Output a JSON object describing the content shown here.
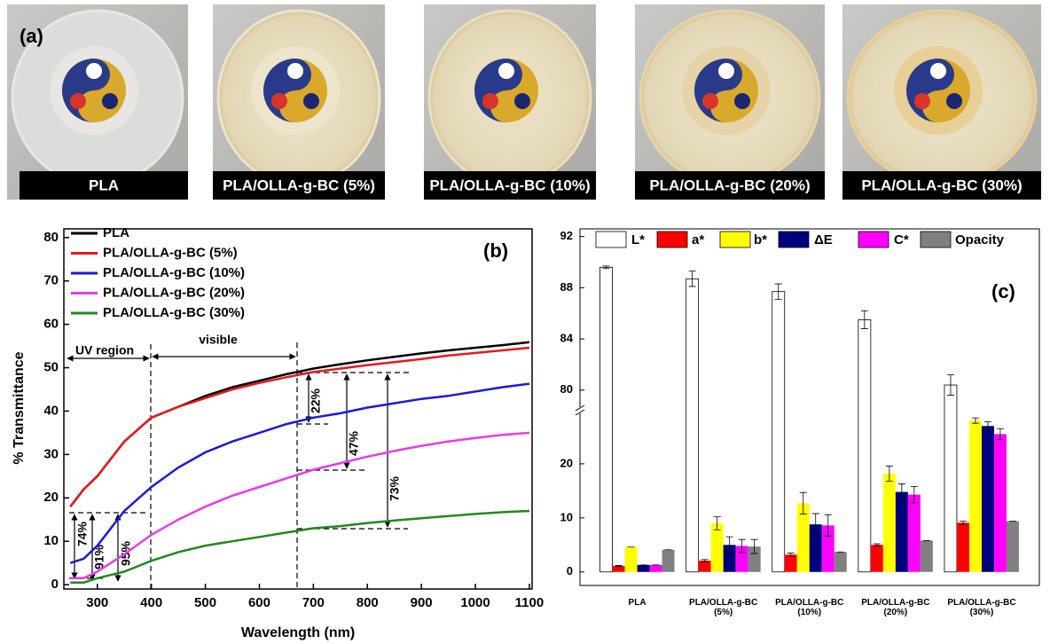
{
  "panel_a": {
    "label": "(a)",
    "captions": [
      "PLA",
      "PLA/OLLA-g-BC (5%)",
      "PLA/OLLA-g-BC (10%)",
      "PLA/OLLA-g-BC (20%)",
      "PLA/OLLA-g-BC (30%)"
    ]
  },
  "chart_data": [
    {
      "type": "line",
      "panel_label": "(b)",
      "x_label": "Wavelength (nm)",
      "y_label": "% Transmittance",
      "x": [
        250,
        275,
        300,
        350,
        400,
        450,
        500,
        550,
        600,
        650,
        700,
        750,
        800,
        850,
        900,
        950,
        1000,
        1050,
        1100
      ],
      "series": [
        {
          "name": "PLA",
          "color": "#000000",
          "values": [
            18,
            22,
            25,
            33,
            38.5,
            41,
            43.5,
            45.5,
            47,
            48.5,
            49.8,
            50.8,
            51.7,
            52.5,
            53.3,
            54,
            54.6,
            55.2,
            55.9
          ]
        },
        {
          "name": "PLA/OLLA-g-BC (5%)",
          "color": "#e8191c",
          "values": [
            18,
            22,
            25,
            33,
            38.5,
            41,
            43,
            45,
            46.5,
            47.8,
            49,
            49.8,
            50.6,
            51.3,
            52,
            52.8,
            53.4,
            54,
            54.6
          ]
        },
        {
          "name": "PLA/OLLA-g-BC (10%)",
          "color": "#1a1adb",
          "values": [
            5,
            6,
            9,
            17,
            22.5,
            27,
            30.5,
            33,
            35,
            37,
            38.5,
            39.5,
            40.8,
            41.8,
            42.8,
            43.5,
            44.5,
            45.5,
            46.3
          ]
        },
        {
          "name": "PLA/OLLA-g-BC (20%)",
          "color": "#e83ae8",
          "values": [
            1.5,
            1.5,
            3,
            7,
            11.5,
            15,
            18,
            20.5,
            22.5,
            24.5,
            26.5,
            28,
            29.5,
            30.8,
            32,
            33,
            33.8,
            34.5,
            35
          ]
        },
        {
          "name": "PLA/OLLA-g-BC (30%)",
          "color": "#1e8a1e",
          "values": [
            0.5,
            0.5,
            1.5,
            3,
            5.5,
            7.5,
            9,
            10,
            11,
            12,
            13,
            13.5,
            14.2,
            14.8,
            15.3,
            15.8,
            16.3,
            16.7,
            17
          ]
        }
      ],
      "annotations": [
        "UV region",
        "visible",
        "22%",
        "47%",
        "73%",
        "74%",
        "91%",
        "95%"
      ],
      "xlim": [
        238,
        1105
      ],
      "xticks": [
        300,
        400,
        500,
        600,
        700,
        800,
        900,
        1000,
        1100
      ],
      "ylim": [
        -1,
        82
      ],
      "yticks": [
        0,
        10,
        20,
        30,
        40,
        50,
        60,
        70,
        80
      ]
    },
    {
      "type": "bar",
      "panel_label": "(c)",
      "categories": [
        "PLA",
        "PLA/OLLA-g-BC (5%)",
        "PLA/OLLA-g-BC (10%)",
        "PLA/OLLA-g-BC (20%)",
        "PLA/OLLA-g-BC (30%)"
      ],
      "series": [
        {
          "name": "L*",
          "color": "#ffffff",
          "values": [
            89.6,
            88.7,
            87.7,
            85.5,
            80.4
          ],
          "errors": [
            0.1,
            0.6,
            0.6,
            0.7,
            0.8
          ]
        },
        {
          "name": "a*",
          "color": "#ff0000",
          "values": [
            1.1,
            2.1,
            3.2,
            5.0,
            9.1
          ],
          "errors": [
            0.1,
            0.2,
            0.3,
            0.2,
            0.3
          ]
        },
        {
          "name": "b*",
          "color": "#ffff00",
          "values": [
            4.6,
            9.0,
            12.7,
            18.2,
            28.0
          ],
          "errors": [
            0,
            1.2,
            2,
            1.4,
            0.5
          ]
        },
        {
          "name": "ΔE",
          "color": "#00007f",
          "values": [
            1.3,
            5.0,
            8.8,
            14.8,
            27.0
          ],
          "errors": [
            0,
            1.5,
            2,
            1.5,
            0.8
          ]
        },
        {
          "name": "C*",
          "color": "#ff00ff",
          "values": [
            1.3,
            4.8,
            8.6,
            14.3,
            25.5
          ],
          "errors": [
            0,
            1.2,
            2,
            1.5,
            1
          ]
        },
        {
          "name": "Opacity",
          "color": "#808080",
          "values": [
            4.1,
            4.7,
            3.7,
            5.8,
            9.4
          ],
          "errors": [
            0,
            1.3,
            0,
            0,
            0
          ]
        }
      ],
      "ylim": [
        -2.5,
        29.5
      ],
      "yticks": [
        0,
        10,
        20
      ],
      "ylim_upper": [
        78.6,
        92.6
      ],
      "yticks_upper": [
        80,
        84,
        88,
        92
      ]
    }
  ]
}
